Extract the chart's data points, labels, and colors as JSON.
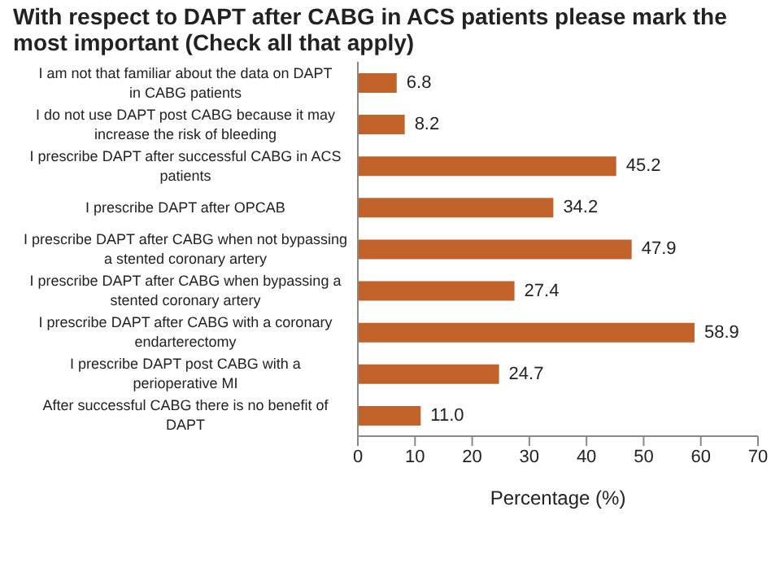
{
  "chart_data": {
    "type": "bar",
    "orientation": "horizontal",
    "title": "With respect to DAPT after CABG in ACS patients please mark the most important (Check all that apply)",
    "xlabel": "Percentage (%)",
    "categories": [
      "I am not that familiar about the data on DAPT in CABG patients",
      "I do not use DAPT post CABG because it may increase the risk of bleeding",
      "I prescribe DAPT after successful CABG in ACS patients",
      "I prescribe DAPT after OPCAB",
      "I prescribe DAPT after CABG when not bypassing a stented coronary artery",
      "I prescribe DAPT after CABG when bypassing a stented coronary artery",
      "I prescribe DAPT after CABG with a coronary endarterectomy",
      "I prescribe DAPT post CABG with a perioperative MI",
      "After successful CABG there is no benefit of DAPT"
    ],
    "values": [
      6.8,
      8.2,
      45.2,
      34.2,
      47.9,
      27.4,
      58.9,
      24.7,
      11.0
    ],
    "value_labels": [
      "6.8",
      "8.2",
      "45.2",
      "34.2",
      "47.9",
      "27.4",
      "58.9",
      "24.7",
      "11.0"
    ],
    "color": "#c0622a",
    "xlim": [
      0,
      70
    ],
    "xticks": [
      0,
      10,
      20,
      30,
      40,
      50,
      60,
      70
    ],
    "grid": false,
    "legend": false
  }
}
